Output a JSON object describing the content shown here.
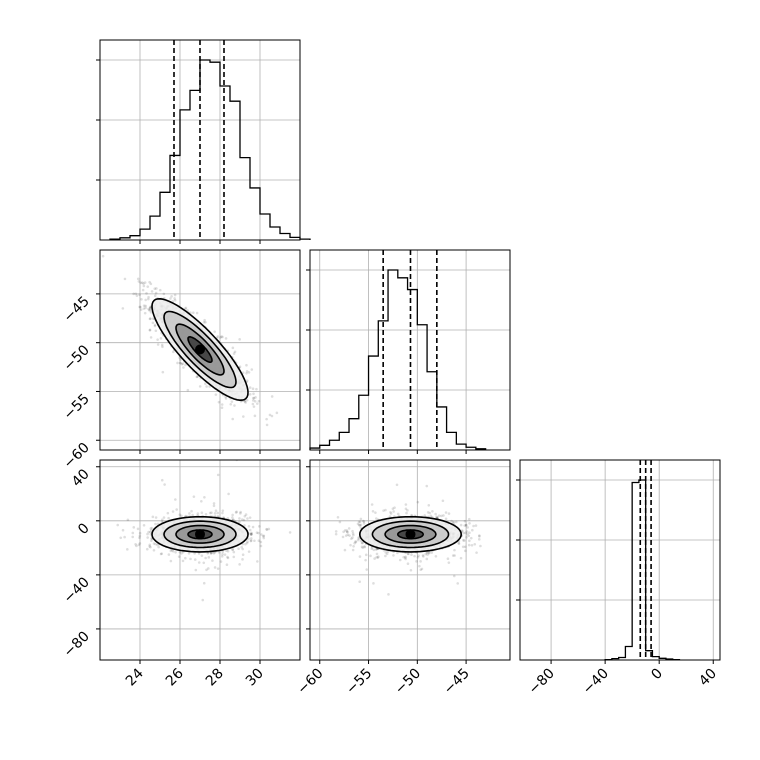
{
  "chart_data": {
    "type": "corner",
    "parameters": [
      {
        "range": [
          22.0,
          32.0
        ],
        "ticks": [
          24,
          26,
          28,
          30
        ],
        "tick_labels": [
          "24",
          "26",
          "28",
          "30"
        ]
      },
      {
        "range": [
          -61.0,
          -40.5
        ],
        "ticks": [
          -60,
          -55,
          -50,
          -45
        ],
        "tick_labels": [
          "−60",
          "−55",
          "−50",
          "−45"
        ]
      },
      {
        "range": [
          -103.0,
          45.0
        ],
        "ticks": [
          -80,
          -40,
          0,
          40
        ],
        "tick_labels": [
          "−80",
          "−40",
          "0",
          "40"
        ]
      }
    ],
    "quantiles": [
      [
        25.7,
        27.0,
        28.2
      ],
      [
        -53.5,
        -50.7,
        -48.0
      ],
      [
        -14.0,
        -10.0,
        -6.0
      ]
    ],
    "histograms": [
      {
        "edges_start": 22.5,
        "bin_width": 0.5,
        "counts": [
          2,
          5,
          10,
          25,
          55,
          110,
          195,
          300,
          345,
          415,
          410,
          355,
          320,
          190,
          120,
          60,
          30,
          15,
          6,
          2
        ]
      },
      {
        "edges_start": -61.0,
        "bin_width": 1.0,
        "counts": [
          5,
          12,
          25,
          45,
          80,
          140,
          240,
          330,
          460,
          440,
          410,
          320,
          200,
          110,
          45,
          15,
          7,
          3
        ]
      },
      {
        "edges_start": -40.0,
        "bin_width": 5.0,
        "counts": [
          2,
          8,
          15,
          80,
          1050,
          1065,
          55,
          20,
          10,
          6,
          2
        ]
      }
    ],
    "pairs": [
      {
        "x_param": 0,
        "y_param": 1,
        "center": [
          27.0,
          -50.7
        ],
        "sigma": [
          1.2,
          2.6
        ],
        "rho": -0.85
      },
      {
        "x_param": 0,
        "y_param": 2,
        "center": [
          27.0,
          -10.0
        ],
        "sigma": [
          1.2,
          6.5
        ],
        "rho": 0.0
      },
      {
        "x_param": 1,
        "y_param": 2,
        "center": [
          -50.7,
          -10.0
        ],
        "sigma": [
          2.6,
          6.5
        ],
        "rho": 0.0
      }
    ],
    "contour_levels_sigma": [
      0.5,
      1.0,
      1.5,
      2.0
    ],
    "grid": true
  }
}
